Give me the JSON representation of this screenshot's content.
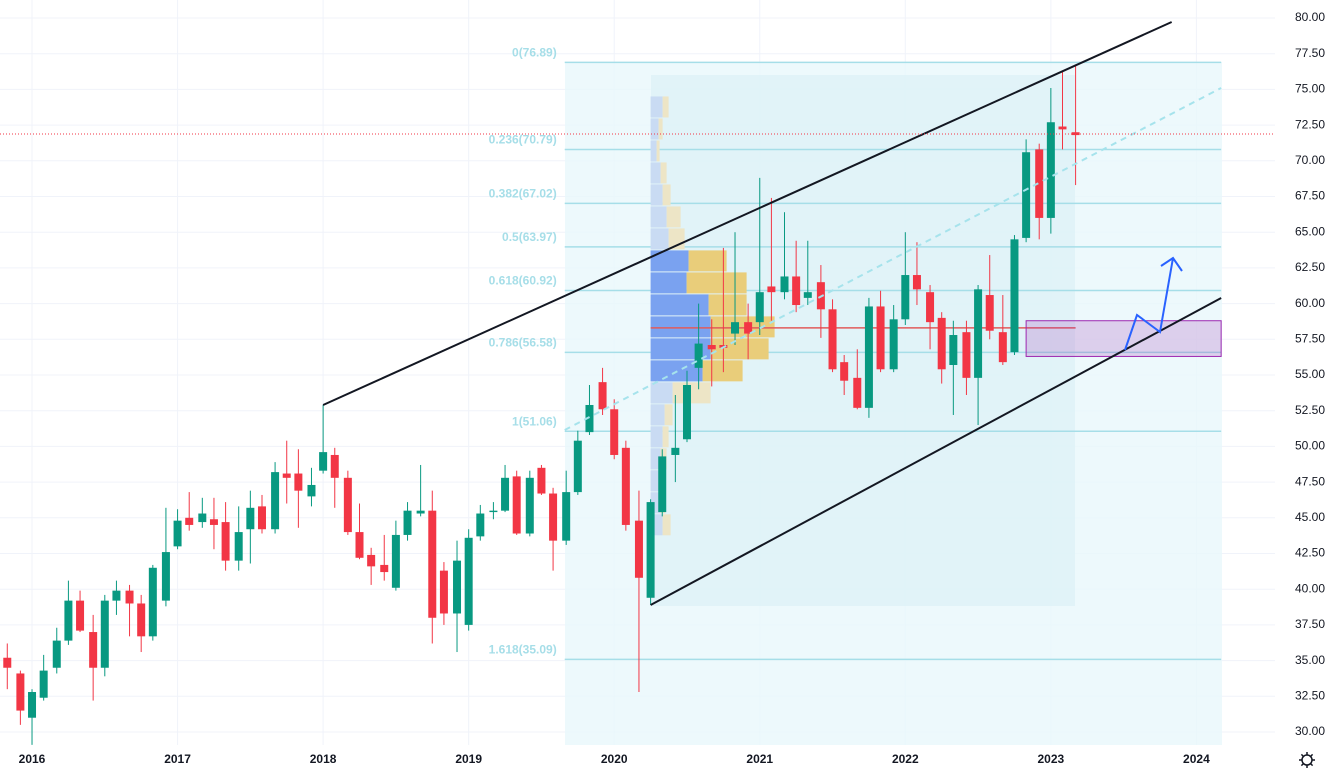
{
  "chart_data": {
    "type": "candlestick",
    "xlim": [
      2015.78,
      2024.54
    ],
    "ylim": [
      29.09,
      81.26
    ],
    "xticks": [
      2016,
      2017,
      2018,
      2019,
      2020,
      2021,
      2022,
      2023,
      2024
    ],
    "yticks": [
      {
        "value": 30,
        "label": "30.00"
      },
      {
        "value": 32.5,
        "label": "32.50"
      },
      {
        "value": 35,
        "label": "35.00"
      },
      {
        "value": 37.5,
        "label": "37.50"
      },
      {
        "value": 40,
        "label": "40.00"
      },
      {
        "value": 42.5,
        "label": "42.50"
      },
      {
        "value": 45,
        "label": "45.00"
      },
      {
        "value": 47.5,
        "label": "47.50"
      },
      {
        "value": 50,
        "label": "50.00"
      },
      {
        "value": 52.5,
        "label": "52.50"
      },
      {
        "value": 55,
        "label": "55.00"
      },
      {
        "value": 57.5,
        "label": "57.50"
      },
      {
        "value": 60,
        "label": "60.00"
      },
      {
        "value": 62.5,
        "label": "62.50"
      },
      {
        "value": 65,
        "label": "65.00"
      },
      {
        "value": 67.5,
        "label": "67.50"
      },
      {
        "value": 70,
        "label": "70.00"
      },
      {
        "value": 72.5,
        "label": "72.50"
      },
      {
        "value": 75,
        "label": "75.00"
      },
      {
        "value": 77.5,
        "label": "77.50"
      },
      {
        "value": 80,
        "label": "80.00"
      }
    ],
    "grid": true,
    "up_color": "#089981",
    "down_color": "#f23645",
    "x": [
      2015.83,
      2015.92,
      2016.0,
      2016.08,
      2016.17,
      2016.25,
      2016.33,
      2016.42,
      2016.5,
      2016.58,
      2016.67,
      2016.75,
      2016.83,
      2016.92,
      2017.0,
      2017.08,
      2017.17,
      2017.25,
      2017.33,
      2017.42,
      2017.5,
      2017.58,
      2017.67,
      2017.75,
      2017.83,
      2017.92,
      2018.0,
      2018.08,
      2018.17,
      2018.25,
      2018.33,
      2018.42,
      2018.5,
      2018.58,
      2018.67,
      2018.75,
      2018.83,
      2018.92,
      2019.0,
      2019.08,
      2019.17,
      2019.25,
      2019.33,
      2019.42,
      2019.5,
      2019.58,
      2019.67,
      2019.75,
      2019.83,
      2019.92,
      2020.0,
      2020.08,
      2020.17,
      2020.25,
      2020.33,
      2020.42,
      2020.5,
      2020.58,
      2020.67,
      2020.75,
      2020.83,
      2020.92,
      2021.0,
      2021.08,
      2021.17,
      2021.25,
      2021.33,
      2021.42,
      2021.5,
      2021.58,
      2021.67,
      2021.75,
      2021.83,
      2021.92,
      2022.0,
      2022.08,
      2022.17,
      2022.25,
      2022.33,
      2022.42,
      2022.5,
      2022.58,
      2022.67,
      2022.75,
      2022.83,
      2022.92,
      2023.0,
      2023.08,
      2023.17
    ],
    "open": [
      35.2,
      34.1,
      31.0,
      32.4,
      34.5,
      36.4,
      39.2,
      37.0,
      34.5,
      39.2,
      39.9,
      39.0,
      36.7,
      39.2,
      43.0,
      45.0,
      44.7,
      44.9,
      44.7,
      42.0,
      44.2,
      45.8,
      44.2,
      48.1,
      48.1,
      46.5,
      48.3,
      49.4,
      47.8,
      44.0,
      42.4,
      41.7,
      40.1,
      43.8,
      45.3,
      45.5,
      41.3,
      38.3,
      37.5,
      43.7,
      45.4,
      45.5,
      47.9,
      43.9,
      48.5,
      46.7,
      43.4,
      46.8,
      51.0,
      54.5,
      52.6,
      49.9,
      44.8,
      39.4,
      45.4,
      49.4,
      50.5,
      55.5,
      57.1,
      57.1,
      57.9,
      58.7,
      58.7,
      61.2,
      60.8,
      61.9,
      60.4,
      61.5,
      59.6,
      55.9,
      54.8,
      52.7,
      59.8,
      55.4,
      58.9,
      62.0,
      60.8,
      59.0,
      55.7,
      58.0,
      54.8,
      60.6,
      58.0,
      56.6,
      64.6,
      70.8,
      66.0,
      72.4,
      72.0
    ],
    "high": [
      36.2,
      34.3,
      33.0,
      35.4,
      37.3,
      40.6,
      39.9,
      38.2,
      39.6,
      40.6,
      40.3,
      39.6,
      41.7,
      45.7,
      45.6,
      46.8,
      46.4,
      46.4,
      46.1,
      45.8,
      46.9,
      46.6,
      48.9,
      50.4,
      49.8,
      48.5,
      52.9,
      49.9,
      48.3,
      46.0,
      42.9,
      43.8,
      44.8,
      46.1,
      48.7,
      46.9,
      41.9,
      43.4,
      44.2,
      45.9,
      46.1,
      48.7,
      48.3,
      48.3,
      48.7,
      47.1,
      48.3,
      51.1,
      54.3,
      55.5,
      53.3,
      50.4,
      46.9,
      46.3,
      49.8,
      53.6,
      55.3,
      60.0,
      58.9,
      63.9,
      65.0,
      60.0,
      68.8,
      67.4,
      66.4,
      64.4,
      64.4,
      62.7,
      60.3,
      56.4,
      56.8,
      60.4,
      60.9,
      59.9,
      65.0,
      64.3,
      61.3,
      59.4,
      58.8,
      58.8,
      61.3,
      63.4,
      60.6,
      64.8,
      71.5,
      71.2,
      75.1,
      76.3,
      76.7
    ],
    "low": [
      33.0,
      30.5,
      29.1,
      32.2,
      34.1,
      36.1,
      37.0,
      32.2,
      33.9,
      38.2,
      36.7,
      35.6,
      36.4,
      38.8,
      42.8,
      44.1,
      44.3,
      42.8,
      41.3,
      41.3,
      41.8,
      43.9,
      43.9,
      46.0,
      44.3,
      45.8,
      48.1,
      45.7,
      43.8,
      42.1,
      40.3,
      40.6,
      39.9,
      43.4,
      45.1,
      36.2,
      37.5,
      35.6,
      37.1,
      43.4,
      44.9,
      45.4,
      43.8,
      43.7,
      46.6,
      41.3,
      43.1,
      46.6,
      50.8,
      52.2,
      49.1,
      44.1,
      32.8,
      38.9,
      45.1,
      47.5,
      50.3,
      54.0,
      54.2,
      55.2,
      57.1,
      56.1,
      57.8,
      58.8,
      60.3,
      59.4,
      59.9,
      57.6,
      55.2,
      53.6,
      52.6,
      52.0,
      55.2,
      55.2,
      58.5,
      59.9,
      56.8,
      54.4,
      52.2,
      53.6,
      51.5,
      57.5,
      55.7,
      56.4,
      64.3,
      64.5,
      64.9,
      70.8,
      68.3
    ],
    "close": [
      34.5,
      31.5,
      32.8,
      34.3,
      36.4,
      39.2,
      37.1,
      34.5,
      39.2,
      39.9,
      39.0,
      36.7,
      41.5,
      42.6,
      44.8,
      44.5,
      45.3,
      44.5,
      42.0,
      44.0,
      45.7,
      44.2,
      48.2,
      47.8,
      46.9,
      47.3,
      49.6,
      47.8,
      44.0,
      42.2,
      41.6,
      41.2,
      43.8,
      45.5,
      45.5,
      38.0,
      38.3,
      42.0,
      43.6,
      45.3,
      45.5,
      47.8,
      43.9,
      47.8,
      46.7,
      43.4,
      46.8,
      50.4,
      52.9,
      52.6,
      49.4,
      44.5,
      40.8,
      46.1,
      49.3,
      49.9,
      54.3,
      57.2,
      56.8,
      56.9,
      58.7,
      57.9,
      60.8,
      60.8,
      61.9,
      59.9,
      60.8,
      59.6,
      55.4,
      54.6,
      52.7,
      59.8,
      55.4,
      58.9,
      62.0,
      61.0,
      58.7,
      55.4,
      57.8,
      54.8,
      61.0,
      58.1,
      55.9,
      64.5,
      70.6,
      66.0,
      72.7,
      72.2,
      71.8
    ],
    "fib_x": [
      2019.66,
      2024.17
    ],
    "fib_color": "#a6dee8",
    "fib_levels": [
      {
        "value": 76.89,
        "label": "0(76.89)"
      },
      {
        "value": 70.79,
        "label": "0.236(70.79)"
      },
      {
        "value": 67.02,
        "label": "0.382(67.02)"
      },
      {
        "value": 63.97,
        "label": "0.5(63.97)"
      },
      {
        "value": 60.92,
        "label": "0.618(60.92)"
      },
      {
        "value": 56.58,
        "label": "0.786(56.58)"
      },
      {
        "value": 51.06,
        "label": "1(51.06)"
      },
      {
        "value": 35.09,
        "label": "1.618(35.09)"
      }
    ],
    "volume_profile": {
      "x": 2020.25,
      "levels": [
        73.77,
        72.23,
        70.69,
        69.15,
        67.61,
        66.07,
        64.53,
        62.99,
        61.45,
        59.91,
        58.37,
        56.83,
        55.29,
        53.75,
        52.21,
        50.67,
        49.13,
        47.59,
        46.05,
        44.51
      ],
      "up": [
        12,
        8,
        6,
        10,
        12,
        16,
        18,
        38,
        36,
        58,
        60,
        60,
        52,
        22,
        14,
        12,
        10,
        8,
        10,
        12
      ],
      "down": [
        6,
        4,
        3,
        6,
        8,
        14,
        16,
        38,
        60,
        38,
        64,
        58,
        40,
        38,
        8,
        6,
        6,
        5,
        5,
        8
      ],
      "value_area": [
        55.29,
        62.99
      ],
      "up_color": "#7aa2f0",
      "down_color": "#e9cd7a",
      "up_color_outside": "#c9dbf3",
      "down_color_outside": "#ede5c6"
    },
    "poc": {
      "price": 58.3,
      "x": [
        2020.25,
        2023.17
      ],
      "color": "#e15b5b"
    },
    "trendlines": [
      {
        "x": [
          2018.0,
          2023.83
        ],
        "y": [
          52.9,
          79.72
        ],
        "color": "#131722",
        "dashed": false
      },
      {
        "x": [
          2020.25,
          2024.17
        ],
        "y": [
          38.89,
          60.39
        ],
        "color": "#131722",
        "dashed": false
      },
      {
        "x": [
          2019.66,
          2024.17
        ],
        "y": [
          51.15,
          75.1
        ],
        "color": "#a6e3ec",
        "dashed": true
      }
    ],
    "zone": {
      "x": [
        2022.83,
        2024.17
      ],
      "y": [
        56.3,
        58.8
      ],
      "color": "#9c27b0"
    },
    "last_price": 71.88
  }
}
